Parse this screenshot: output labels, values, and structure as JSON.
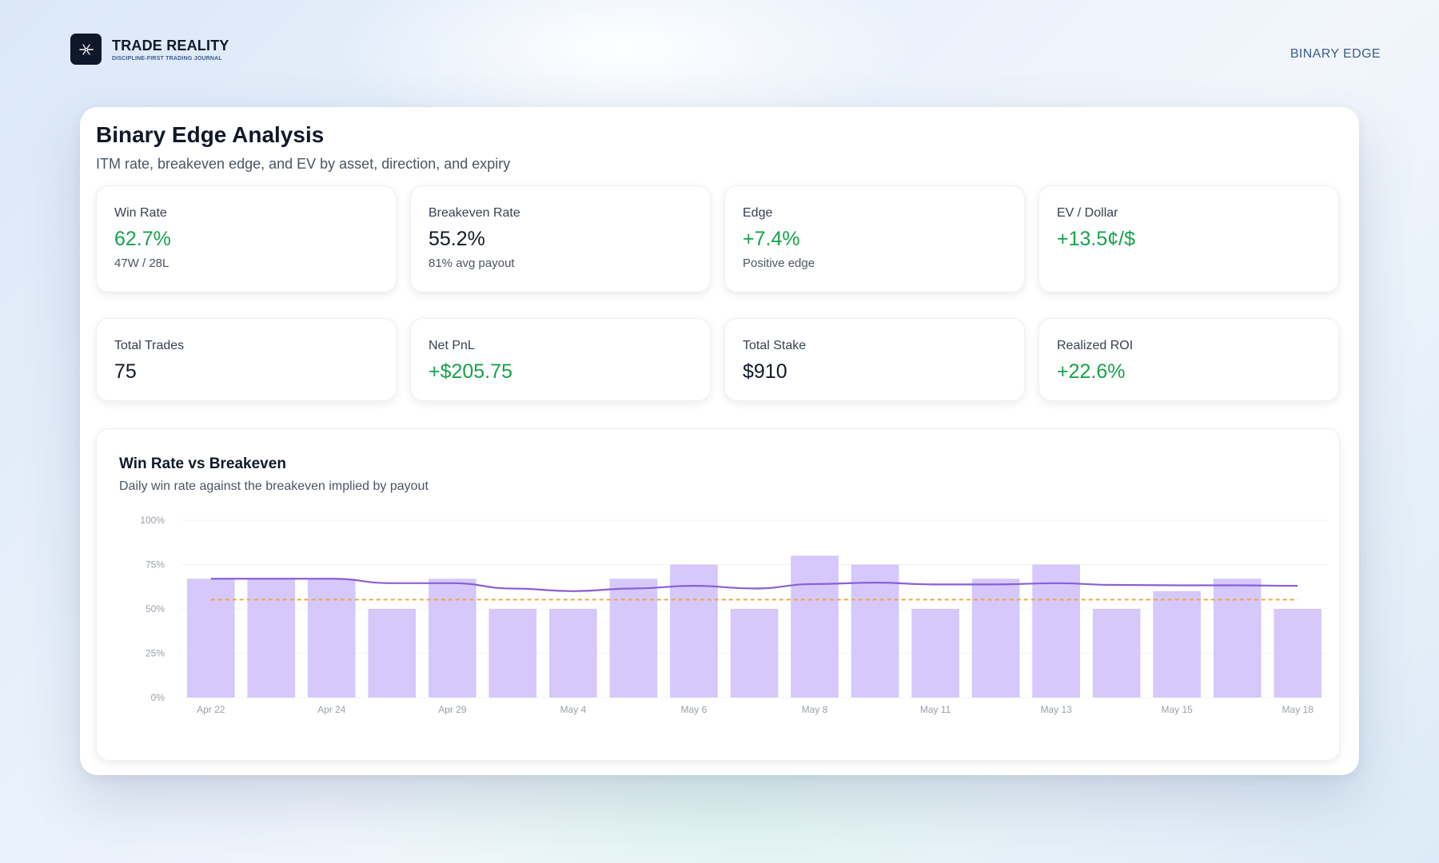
{
  "brand": {
    "name": "TRADE REALITY",
    "tagline": "DISCIPLINE-FIRST TRADING JOURNAL",
    "logo_icon": "scissors-icon"
  },
  "nav": {
    "active_label": "BINARY EDGE"
  },
  "page": {
    "title": "Binary Edge Analysis",
    "subtitle": "ITM rate, breakeven edge, and EV by asset, direction, and expiry"
  },
  "stats": [
    {
      "label": "Win Rate",
      "value": "62.7%",
      "sub": "47W / 28L",
      "positive": true
    },
    {
      "label": "Breakeven Rate",
      "value": "55.2%",
      "sub": "81% avg payout",
      "positive": false
    },
    {
      "label": "Edge",
      "value": "+7.4%",
      "sub": "Positive edge",
      "positive": true
    },
    {
      "label": "EV / Dollar",
      "value": "+13.5¢/$",
      "sub": "",
      "positive": true
    },
    {
      "label": "Total Trades",
      "value": "75",
      "sub": "",
      "positive": false
    },
    {
      "label": "Net PnL",
      "value": "+$205.75",
      "sub": "",
      "positive": true
    },
    {
      "label": "Total Stake",
      "value": "$910",
      "sub": "",
      "positive": false
    },
    {
      "label": "Realized ROI",
      "value": "+22.6%",
      "sub": "",
      "positive": true
    }
  ],
  "colors": {
    "positive": "#16a34a",
    "bar": "#d6c8fb",
    "line": "#8b5fd6",
    "breakeven": "#f0a43a"
  },
  "chart": {
    "title": "Win Rate vs Breakeven",
    "subtitle": "Daily win rate against the breakeven implied by payout"
  },
  "chart_data": {
    "type": "bar",
    "title": "Win Rate vs Breakeven",
    "ylim": [
      0,
      100
    ],
    "y_ticks": [
      "0%",
      "25%",
      "50%",
      "75%",
      "100%"
    ],
    "x_ticks": [
      "Apr 22",
      "Apr 24",
      "Apr 29",
      "May 4",
      "May 6",
      "May 8",
      "May 11",
      "May 13",
      "May 15",
      "May 18"
    ],
    "series": [
      {
        "type": "bar",
        "values": [
          67,
          67,
          67,
          50,
          67,
          50,
          50,
          67,
          75,
          50,
          80,
          75,
          50,
          67,
          75,
          50,
          60,
          67,
          50
        ]
      },
      {
        "type": "line",
        "values": [
          67,
          67,
          67,
          64.5,
          64.5,
          61.5,
          60,
          61.5,
          63,
          61.5,
          64,
          64.8,
          63.8,
          63.8,
          64.5,
          63.5,
          63.3,
          63.3,
          63
        ]
      },
      {
        "type": "dashed-line",
        "values": [
          55.2,
          55.2,
          55.2,
          55.2,
          55.2,
          55.2,
          55.2,
          55.2,
          55.2,
          55.2,
          55.2,
          55.2,
          55.2,
          55.2,
          55.2,
          55.2,
          55.2,
          55.2,
          55.2
        ]
      }
    ],
    "grid": true
  }
}
